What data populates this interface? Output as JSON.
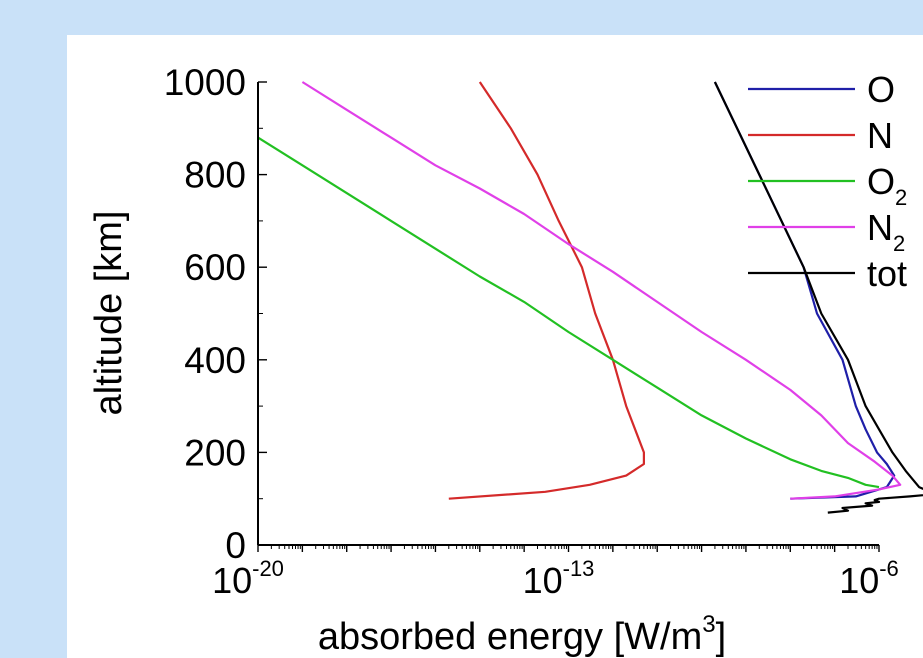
{
  "chart_data": {
    "type": "line",
    "title": "",
    "xlabel": "absorbed energy [W/m",
    "xlabel_sup": "3",
    "xlabel_end": "]",
    "ylabel": "altitude [km]",
    "xscale": "log",
    "xlim": [
      "1e-20",
      "1e-6"
    ],
    "ylim": [
      0,
      1000
    ],
    "x_ticks": [
      {
        "value": "1e-20",
        "base": "10",
        "exp": "-20"
      },
      {
        "value": "1e-13",
        "base": "10",
        "exp": "-13"
      },
      {
        "value": "1e-6",
        "base": "10",
        "exp": "-6"
      }
    ],
    "y_ticks": [
      "0",
      "200",
      "400",
      "600",
      "800",
      "1000"
    ],
    "grid": false,
    "legend_position": "top-right",
    "series": [
      {
        "name": "O",
        "sub": "",
        "color": "#1f1fa8",
        "points": [
          [
            "2e-10",
            1000
          ],
          [
            "2e-9",
            800
          ],
          [
            "2e-8",
            600
          ],
          [
            "4e-8",
            500
          ],
          [
            "1.5e-7",
            400
          ],
          [
            "3e-7",
            300
          ],
          [
            "5e-7",
            250
          ],
          [
            "9e-7",
            200
          ],
          [
            "1.5e-6",
            175
          ],
          [
            "2.2e-6",
            150
          ],
          [
            "1.5e-6",
            125
          ],
          [
            "3e-7",
            105
          ],
          [
            "1e-8",
            100
          ]
        ]
      },
      {
        "name": "N",
        "sub": "",
        "color": "#d42a2a",
        "points": [
          [
            "1e-15",
            1000
          ],
          [
            "5e-15",
            900
          ],
          [
            "2e-14",
            800
          ],
          [
            "6e-14",
            700
          ],
          [
            "2e-13",
            600
          ],
          [
            "4e-13",
            500
          ],
          [
            "1e-12",
            400
          ],
          [
            "2e-12",
            300
          ],
          [
            "5e-12",
            200
          ],
          [
            "5e-12",
            175
          ],
          [
            "2e-12",
            150
          ],
          [
            "3e-13",
            130
          ],
          [
            "3e-14",
            115
          ],
          [
            "2e-16",
            100
          ]
        ]
      },
      {
        "name": "O",
        "sub": "2",
        "color": "#22c022",
        "points": [
          [
            "1e-20",
            880
          ],
          [
            "1e-19",
            820
          ],
          [
            "1e-17",
            700
          ],
          [
            "1e-16",
            640
          ],
          [
            "1e-15",
            580
          ],
          [
            "1e-14",
            525
          ],
          [
            "1e-13",
            460
          ],
          [
            "1e-12",
            400
          ],
          [
            "1e-11",
            340
          ],
          [
            "1e-10",
            280
          ],
          [
            "1e-9",
            230
          ],
          [
            "1e-8",
            185
          ],
          [
            "5e-8",
            160
          ],
          [
            "2e-7",
            145
          ],
          [
            "5e-7",
            130
          ],
          [
            "1e-6",
            125
          ]
        ]
      },
      {
        "name": "N",
        "sub": "2",
        "color": "#e040e8",
        "points": [
          [
            "1e-19",
            1000
          ],
          [
            "1e-18",
            940
          ],
          [
            "1e-17",
            880
          ],
          [
            "1e-16",
            820
          ],
          [
            "1e-15",
            770
          ],
          [
            "1e-14",
            715
          ],
          [
            "1e-13",
            650
          ],
          [
            "1e-12",
            590
          ],
          [
            "1e-11",
            525
          ],
          [
            "1e-10",
            460
          ],
          [
            "1e-9",
            400
          ],
          [
            "1e-8",
            335
          ],
          [
            "5e-8",
            280
          ],
          [
            "2e-7",
            220
          ],
          [
            "8e-7",
            180
          ],
          [
            "2e-6",
            150
          ],
          [
            "3e-6",
            130
          ],
          [
            "1e-6",
            120
          ],
          [
            "1e-7",
            105
          ],
          [
            "1e-8",
            100
          ]
        ]
      },
      {
        "name": "tot",
        "sub": "",
        "color": "#000000",
        "points": [
          [
            "2e-10",
            1000
          ],
          [
            "2e-9",
            800
          ],
          [
            "2e-8",
            600
          ],
          [
            "5e-8",
            500
          ],
          [
            "2e-7",
            400
          ],
          [
            "5e-7",
            300
          ],
          [
            "1e-6",
            250
          ],
          [
            "2e-6",
            200
          ],
          [
            "4e-6",
            160
          ],
          [
            "8e-6",
            125
          ],
          [
            "1.8e-5",
            110
          ],
          [
            "5e-6",
            105
          ],
          [
            "1e-6",
            100
          ],
          [
            "8e-7",
            97
          ],
          [
            "1e-6",
            93
          ],
          [
            "5e-7",
            90
          ],
          [
            "7e-7",
            85
          ],
          [
            "1.5e-7",
            80
          ],
          [
            "2e-7",
            74
          ],
          [
            "7e-8",
            70
          ]
        ]
      }
    ]
  }
}
